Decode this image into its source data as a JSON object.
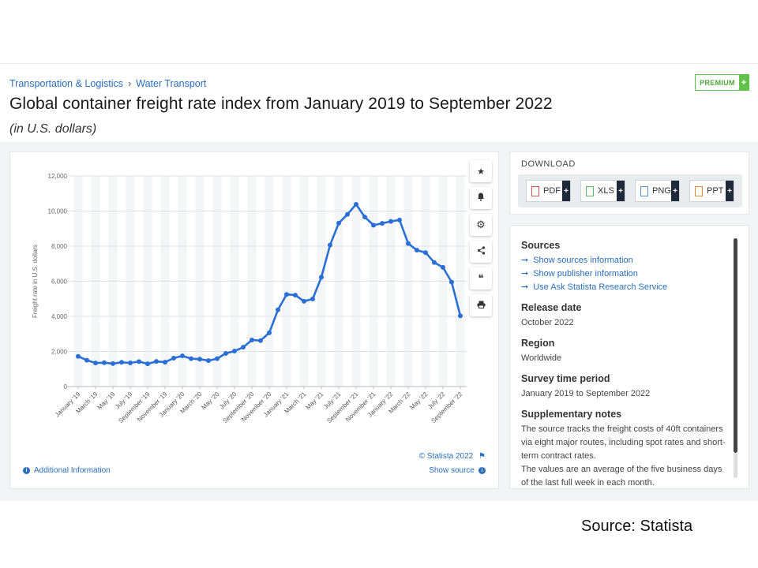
{
  "breadcrumb": {
    "item1": "Transportation & Logistics",
    "sep": "›",
    "item2": "Water Transport"
  },
  "premium": {
    "label": "PREMIUM",
    "plus": "+"
  },
  "title": "Global container freight rate index from January 2019 to September 2022",
  "subtitle": "(in U.S. dollars)",
  "tools": [
    {
      "name": "star-icon",
      "glyph": "★"
    },
    {
      "name": "bell-icon",
      "glyph": "🔔"
    },
    {
      "name": "gear-icon",
      "glyph": "⚙"
    },
    {
      "name": "share-icon",
      "glyph": "⋖"
    },
    {
      "name": "quote-icon",
      "glyph": "❝"
    },
    {
      "name": "print-icon",
      "glyph": "⎙"
    }
  ],
  "chart_footer": {
    "copyright": "© Statista 2022",
    "additional_info": "Additional Information",
    "show_source": "Show source"
  },
  "download": {
    "title": "DOWNLOAD",
    "buttons": [
      {
        "label": "PDF",
        "color": "#d9534f"
      },
      {
        "label": "XLS",
        "color": "#5cb85c"
      },
      {
        "label": "PNG",
        "color": "#5b8fd6"
      },
      {
        "label": "PPT",
        "color": "#e8863a"
      }
    ]
  },
  "info": {
    "sources_title": "Sources",
    "links": [
      "Show sources information",
      "Show publisher information",
      "Use Ask Statista Research Service"
    ],
    "release_title": "Release date",
    "release_value": "October 2022",
    "region_title": "Region",
    "region_value": "Worldwide",
    "survey_title": "Survey time period",
    "survey_value": "January 2019 to September 2022",
    "notes_title": "Supplementary notes",
    "notes_1": "The source tracks the freight costs of 40ft containers via eight major routes, including spot rates and short-term contract rates.",
    "notes_2": "The values are an average of the five business days of the last full week in each month."
  },
  "footer_source": "Source: Statista",
  "chart_data": {
    "type": "line",
    "title": "",
    "xlabel": "",
    "ylabel": "Freight rate in U.S. dollars",
    "ylim": [
      0,
      12000
    ],
    "yticks": [
      0,
      2000,
      4000,
      6000,
      8000,
      10000,
      12000
    ],
    "grid": true,
    "color": "#2a6fd6",
    "tick_labels": [
      "January '19",
      "March '19",
      "May '19",
      "July '19",
      "September '19",
      "November '19",
      "January '20",
      "March '20",
      "May '20",
      "July '20",
      "September '20",
      "November '20",
      "January '21",
      "March '21",
      "May '21",
      "July '21",
      "September '21",
      "November '21",
      "January '22",
      "March '22",
      "May '22",
      "July '22",
      "September '22"
    ],
    "x": [
      "Jan 2019",
      "Feb 2019",
      "Mar 2019",
      "Apr 2019",
      "May 2019",
      "Jun 2019",
      "Jul 2019",
      "Aug 2019",
      "Sep 2019",
      "Oct 2019",
      "Nov 2019",
      "Dec 2019",
      "Jan 2020",
      "Feb 2020",
      "Mar 2020",
      "Apr 2020",
      "May 2020",
      "Jun 2020",
      "Jul 2020",
      "Aug 2020",
      "Sep 2020",
      "Oct 2020",
      "Nov 2020",
      "Dec 2020",
      "Jan 2021",
      "Feb 2021",
      "Mar 2021",
      "Apr 2021",
      "May 2021",
      "Jun 2021",
      "Jul 2021",
      "Aug 2021",
      "Sep 2021",
      "Oct 2021",
      "Nov 2021",
      "Dec 2021",
      "Jan 2022",
      "Feb 2022",
      "Mar 2022",
      "Apr 2022",
      "May 2022",
      "Jun 2022",
      "Jul 2022",
      "Aug 2022",
      "Sep 2022"
    ],
    "series": [
      {
        "values": [
          1720,
          1500,
          1340,
          1360,
          1310,
          1380,
          1350,
          1420,
          1300,
          1430,
          1390,
          1620,
          1750,
          1590,
          1560,
          1480,
          1590,
          1890,
          2020,
          2240,
          2650,
          2620,
          3060,
          4370,
          5250,
          5210,
          4860,
          4990,
          6230,
          8060,
          9310,
          9810,
          10380,
          9660,
          9190,
          9300,
          9410,
          9490,
          8150,
          7770,
          7630,
          7070,
          6790,
          5950,
          4030
        ]
      }
    ]
  }
}
